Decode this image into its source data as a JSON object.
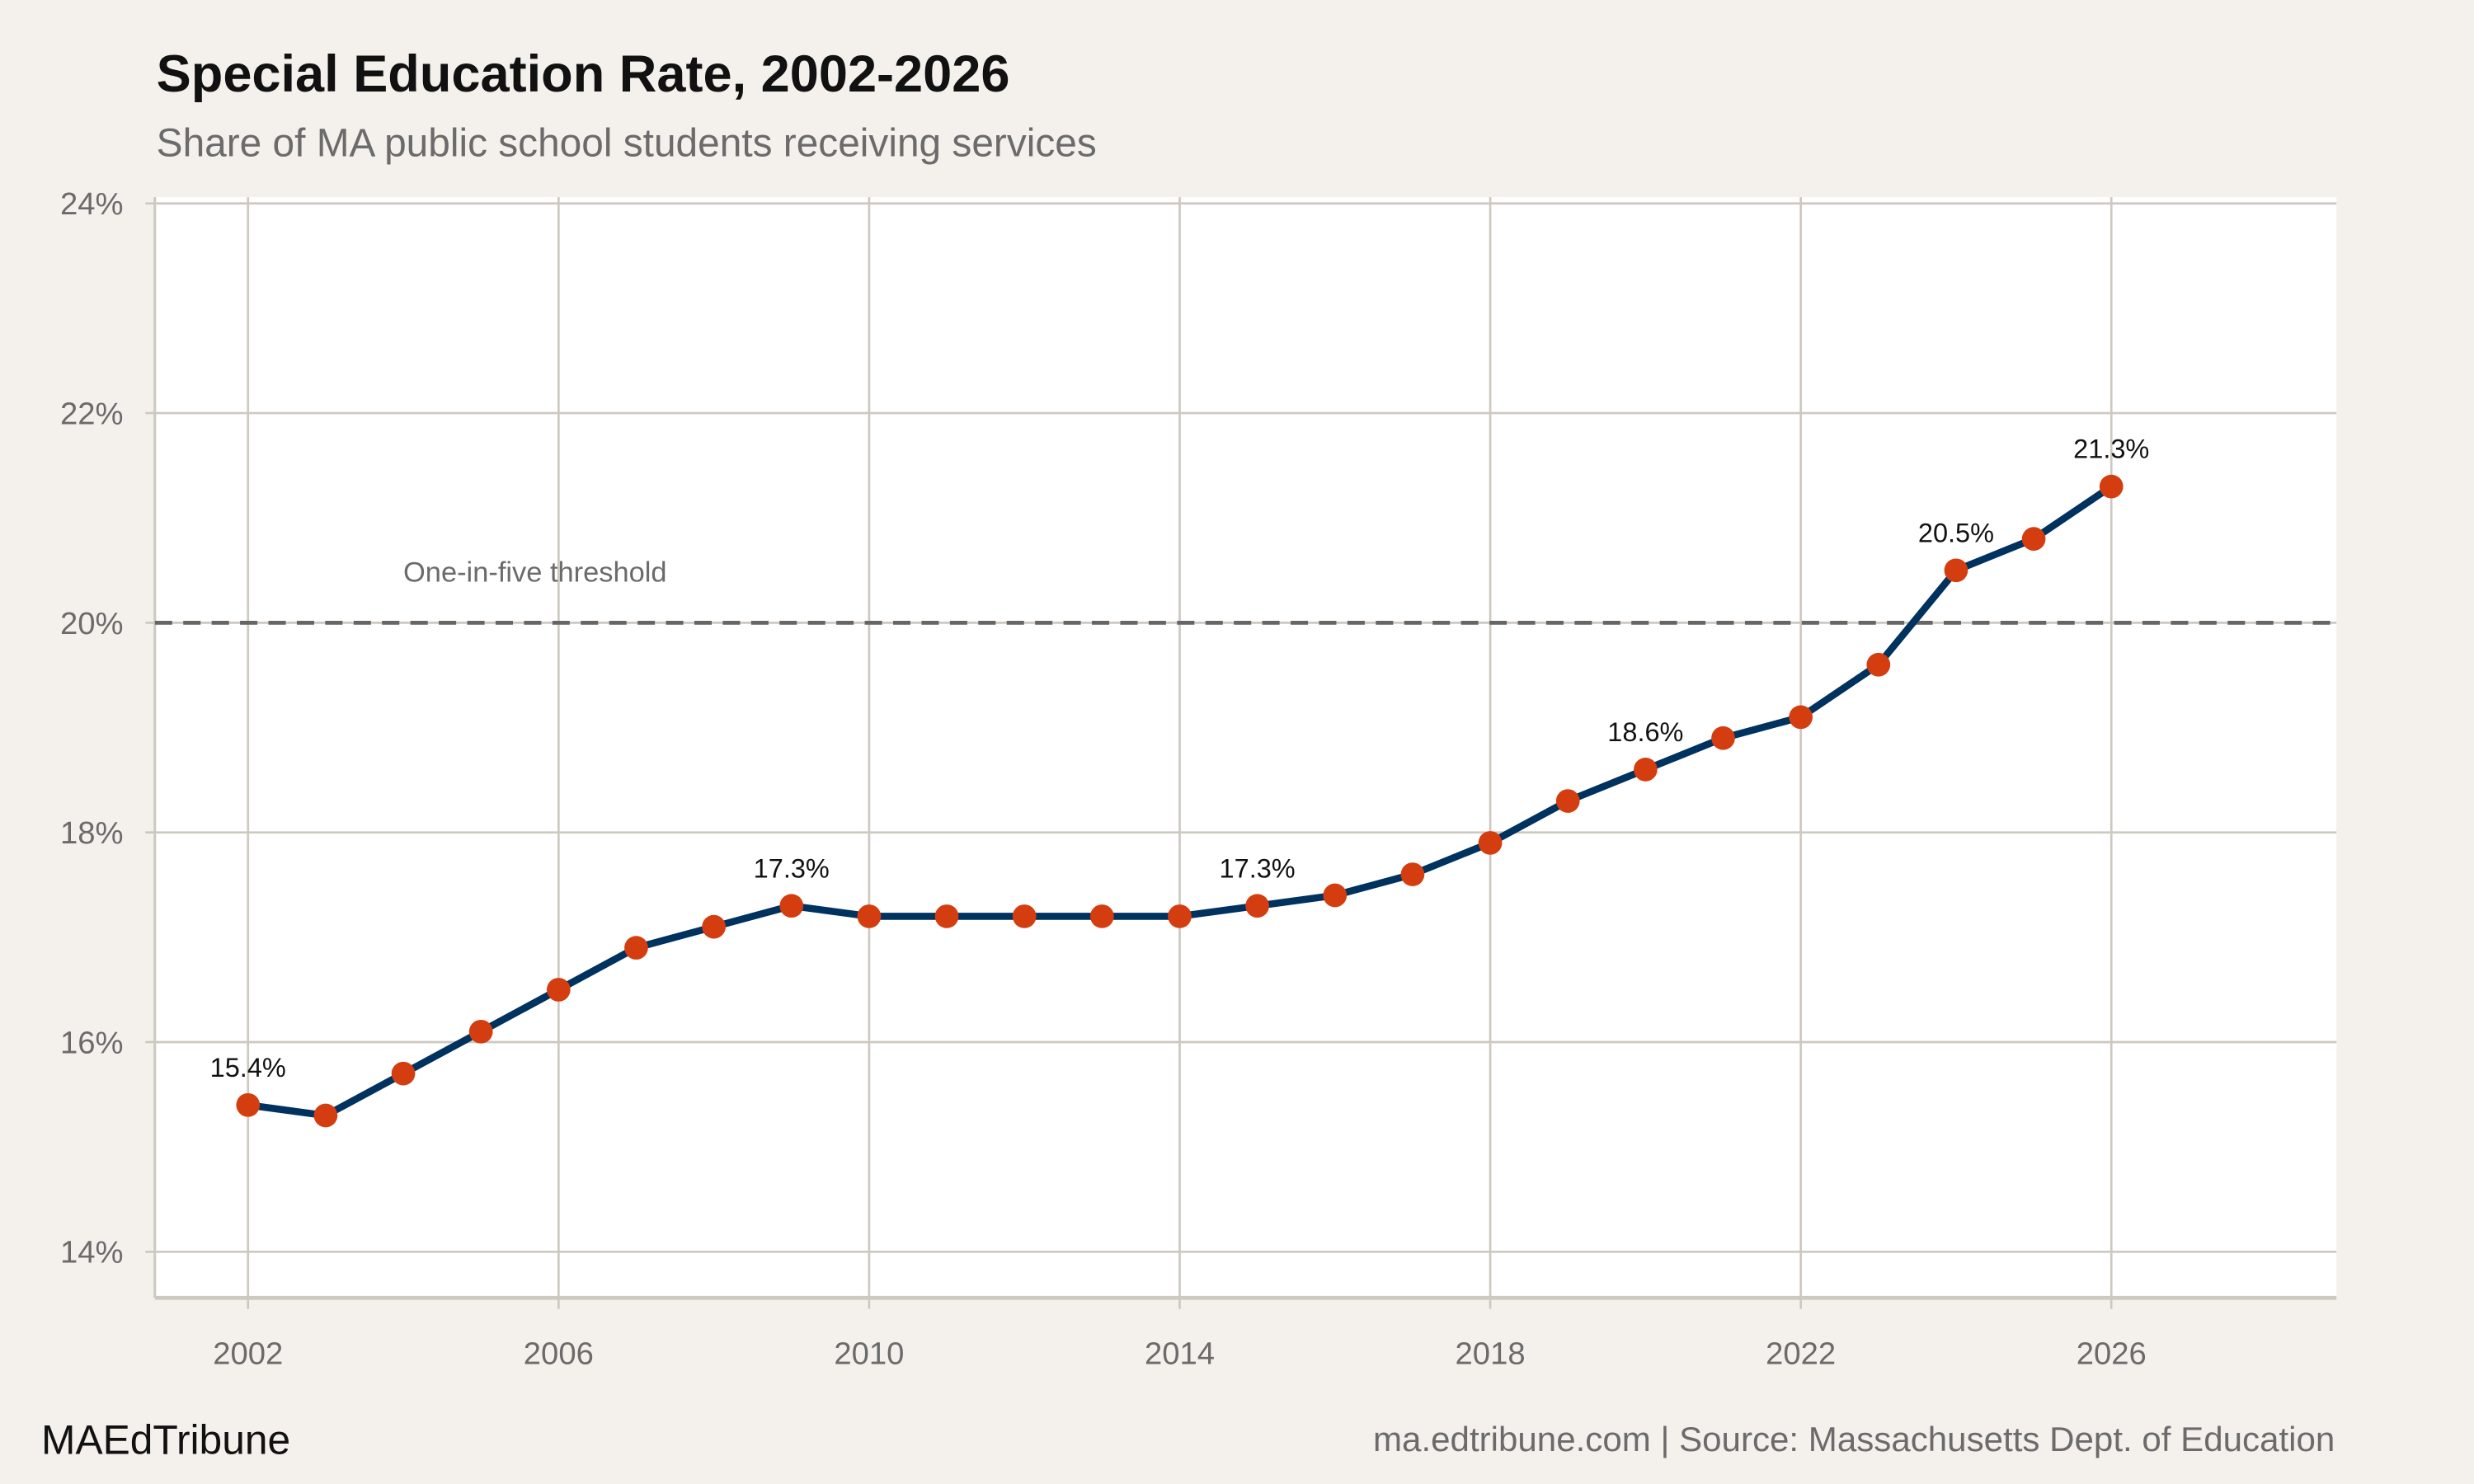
{
  "title": "Special Education Rate, 2002-2026",
  "subtitle": "Share of MA public school students receiving services",
  "footer": {
    "brand": "MAEdTribune",
    "source": "ma.edtribune.com | Source: Massachusetts Dept. of Education"
  },
  "colors": {
    "background": "#f4f1ec",
    "panel": "#ffffff",
    "grid": "#cdc8c0",
    "line": "#00325f",
    "points": "#d43d0f",
    "threshold": "#666666",
    "text_muted": "#6b6b6b"
  },
  "chart_data": {
    "type": "line",
    "title": "Special Education Rate, 2002-2026",
    "subtitle": "Share of MA public school students receiving services",
    "xlabel": "",
    "ylabel": "",
    "x": [
      2002,
      2003,
      2004,
      2005,
      2006,
      2007,
      2008,
      2009,
      2010,
      2011,
      2012,
      2013,
      2014,
      2015,
      2016,
      2017,
      2018,
      2019,
      2020,
      2021,
      2022,
      2023,
      2024,
      2025,
      2026
    ],
    "series": [
      {
        "values": [
          15.4,
          15.3,
          15.7,
          16.1,
          16.5,
          16.9,
          17.1,
          17.3,
          17.2,
          17.2,
          17.2,
          17.2,
          17.2,
          17.3,
          17.4,
          17.6,
          17.9,
          18.3,
          18.6,
          18.9,
          19.1,
          19.6,
          20.5,
          20.8,
          21.3
        ]
      }
    ],
    "xlim": [
      2000.8,
      2028.9
    ],
    "ylim": [
      13.56,
      24.06
    ],
    "x_ticks": [
      2002,
      2006,
      2010,
      2014,
      2018,
      2022,
      2026
    ],
    "x_tick_labels": [
      "2002",
      "2006",
      "2010",
      "2014",
      "2018",
      "2022",
      "2026"
    ],
    "y_ticks": [
      14,
      16,
      18,
      20,
      22,
      24
    ],
    "y_tick_labels": [
      "14%",
      "16%",
      "18%",
      "20%",
      "22%",
      "24%"
    ],
    "grid": true,
    "legend": "none",
    "point_labels": [
      {
        "x": 2002,
        "y": 15.4,
        "text": "15.4%"
      },
      {
        "x": 2009,
        "y": 17.3,
        "text": "17.3%"
      },
      {
        "x": 2015,
        "y": 17.3,
        "text": "17.3%"
      },
      {
        "x": 2020,
        "y": 18.6,
        "text": "18.6%"
      },
      {
        "x": 2024,
        "y": 20.5,
        "text": "20.5%"
      },
      {
        "x": 2026,
        "y": 21.3,
        "text": "21.3%"
      }
    ],
    "reference_line": {
      "y": 20,
      "style": "dashed",
      "label": "One-in-five threshold"
    }
  }
}
